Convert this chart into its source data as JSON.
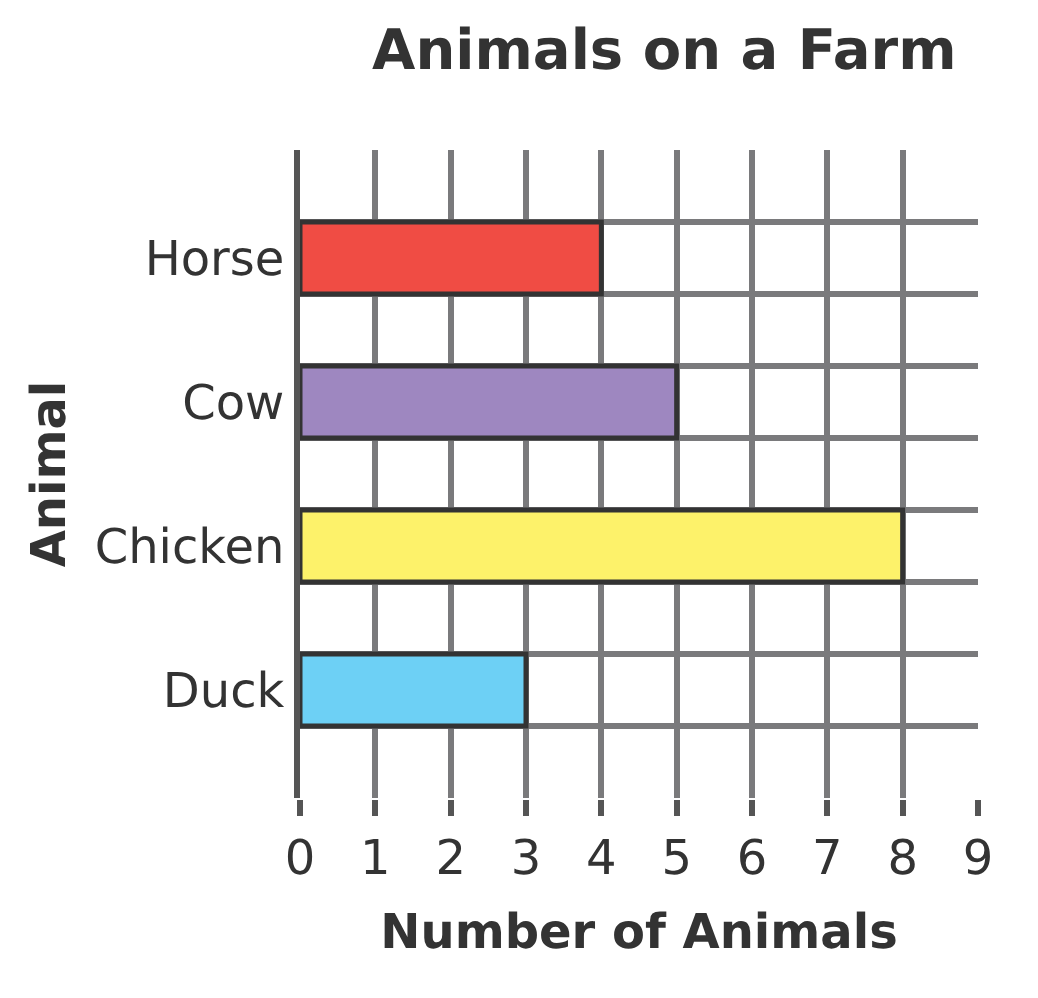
{
  "chart_data": {
    "type": "bar",
    "orientation": "horizontal",
    "title": "Animals on a Farm",
    "xlabel": "Number of Animals",
    "ylabel": "Animal",
    "categories": [
      "Horse",
      "Cow",
      "Chicken",
      "Duck"
    ],
    "values": [
      4,
      5,
      8,
      3
    ],
    "colors": [
      "#f04c44",
      "#9e87c0",
      "#fdf26a",
      "#6dd0f5"
    ],
    "xlim": [
      0,
      9
    ],
    "xticks": [
      0,
      1,
      2,
      3,
      4,
      5,
      6,
      7,
      8,
      9
    ],
    "grid": true,
    "legend": false
  }
}
